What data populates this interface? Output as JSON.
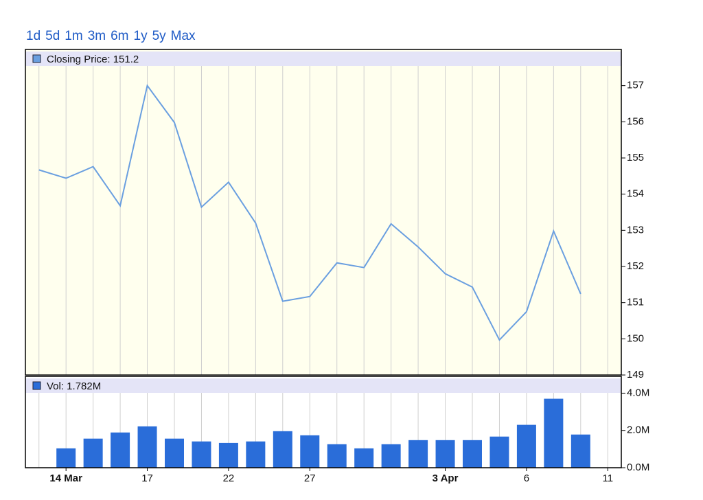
{
  "range_links": [
    "1d",
    "5d",
    "1m",
    "3m",
    "6m",
    "1y",
    "5y",
    "Max"
  ],
  "chart_data": [
    {
      "type": "line",
      "legend": "Closing Price: 151.2",
      "color": "#6a9fe0",
      "categories": [
        null,
        "14 Mar",
        null,
        null,
        "17",
        null,
        null,
        "22",
        null,
        null,
        "27",
        null,
        null,
        null,
        null,
        "3 Apr",
        null,
        null,
        "6",
        null,
        null,
        "11"
      ],
      "values": [
        154.67,
        154.44,
        154.76,
        153.68,
        157.0,
        155.98,
        153.64,
        154.33,
        153.2,
        151.04,
        151.17,
        152.1,
        151.97,
        153.18,
        152.54,
        151.8,
        151.43,
        149.97,
        150.75,
        152.98,
        151.24,
        null
      ],
      "ylim": [
        149,
        158
      ],
      "yticks": [
        149,
        150,
        151,
        152,
        153,
        154,
        155,
        156,
        157
      ]
    },
    {
      "type": "bar",
      "legend": "Vol: 1.782M",
      "color": "#2a6dd9",
      "values": [
        null,
        1.04,
        1.56,
        1.89,
        2.22,
        1.56,
        1.41,
        1.33,
        1.41,
        1.96,
        1.74,
        1.26,
        1.04,
        1.26,
        1.48,
        1.48,
        1.48,
        1.67,
        2.3,
        3.7,
        1.78,
        null
      ],
      "ylim": [
        0,
        4.9
      ],
      "yticks": [
        {
          "value": 0,
          "label": "0.0M"
        },
        {
          "value": 2,
          "label": "2.0M"
        },
        {
          "value": 4,
          "label": "4.0M"
        }
      ]
    }
  ]
}
